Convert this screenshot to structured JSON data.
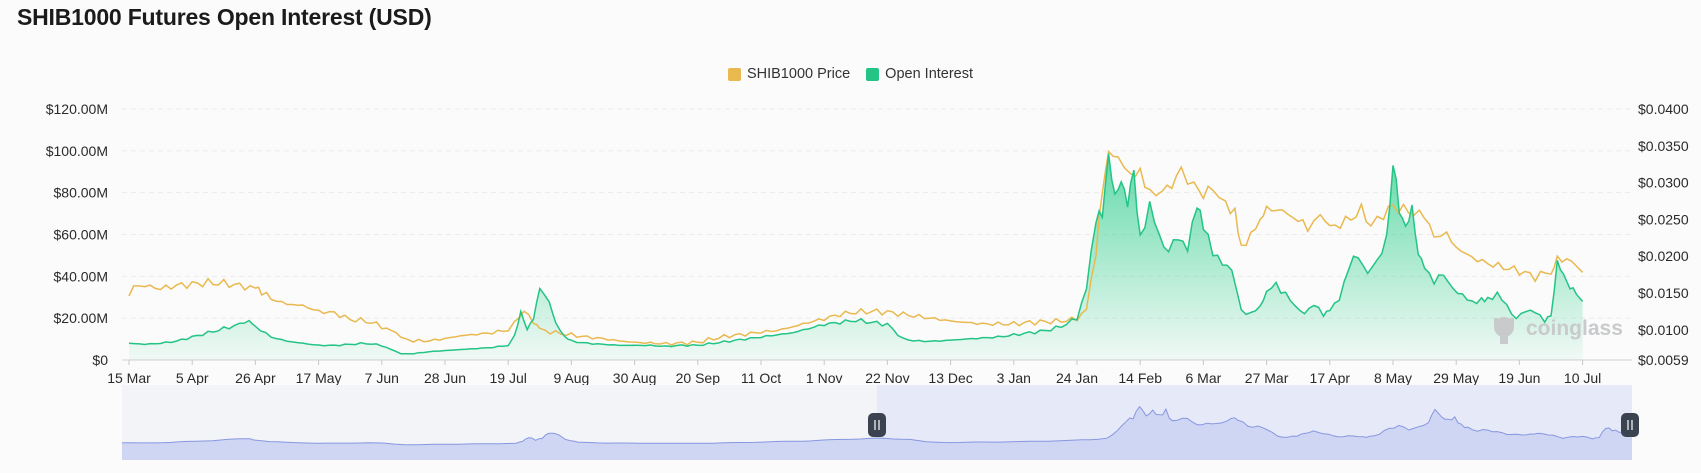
{
  "title": "SHIB1000 Futures Open Interest (USD)",
  "watermark": "coinglass",
  "colors": {
    "price": "#e9b94f",
    "oi": "#23c486",
    "oi_fill_top": "#2fcf8d",
    "nav_fill": "#cfd6f3",
    "nav_line": "#8797e0",
    "nav_select": "#e6e9f8"
  },
  "chart_data": {
    "type": "line",
    "legend": {
      "placement": "top-center"
    },
    "grid": true,
    "x_ticks": [
      "15 Mar",
      "5 Apr",
      "26 Apr",
      "17 May",
      "7 Jun",
      "28 Jun",
      "19 Jul",
      "9 Aug",
      "30 Aug",
      "20 Sep",
      "11 Oct",
      "1 Nov",
      "22 Nov",
      "13 Dec",
      "3 Jan",
      "24 Jan",
      "14 Feb",
      "6 Mar",
      "27 Mar",
      "17 Apr",
      "8 May",
      "29 May",
      "19 Jun",
      "10 Jul"
    ],
    "y_left_ticks": [
      "$0",
      "$20.00M",
      "$40.00M",
      "$60.00M",
      "$80.00M",
      "$100.00M",
      "$120.00M"
    ],
    "y_left_range": [
      0,
      120
    ],
    "y_right_ticks": [
      "$0.0059",
      "$0.0100",
      "$0.0150",
      "$0.0200",
      "$0.0250",
      "$0.0300",
      "$0.0350",
      "$0.0400"
    ],
    "y_right_range": [
      0.0059,
      0.04
    ],
    "series": [
      {
        "name": "SHIB1000 Price",
        "axis": "right",
        "points": [
          [
            0,
            0.0146
          ],
          [
            0.15,
            0.0158
          ],
          [
            0.5,
            0.016
          ],
          [
            1,
            0.0156
          ],
          [
            1.5,
            0.016
          ],
          [
            2,
            0.0162
          ],
          [
            2.5,
            0.0164
          ],
          [
            3,
            0.0163
          ],
          [
            3.5,
            0.016
          ],
          [
            4,
            0.0156
          ],
          [
            4.2,
            0.015
          ],
          [
            4.5,
            0.0142
          ],
          [
            5,
            0.0135
          ],
          [
            5.5,
            0.0133
          ],
          [
            6,
            0.0125
          ],
          [
            6.5,
            0.0123
          ],
          [
            7,
            0.0114
          ],
          [
            7.5,
            0.0112
          ],
          [
            8,
            0.0105
          ],
          [
            8.3,
            0.0099
          ],
          [
            8.6,
            0.009
          ],
          [
            9,
            0.0085
          ],
          [
            9.5,
            0.0085
          ],
          [
            10,
            0.0088
          ],
          [
            10.5,
            0.0092
          ],
          [
            11,
            0.0094
          ],
          [
            11.5,
            0.0096
          ],
          [
            12,
            0.01
          ],
          [
            12.2,
            0.0112
          ],
          [
            12.5,
            0.0125
          ],
          [
            12.8,
            0.011
          ],
          [
            13,
            0.01
          ],
          [
            13.5,
            0.0096
          ],
          [
            14,
            0.0093
          ],
          [
            14.5,
            0.009
          ],
          [
            15,
            0.0088
          ],
          [
            15.5,
            0.0085
          ],
          [
            16,
            0.0083
          ],
          [
            16.5,
            0.0082
          ],
          [
            17,
            0.0081
          ],
          [
            17.5,
            0.0082
          ],
          [
            18,
            0.0083
          ],
          [
            18.5,
            0.0088
          ],
          [
            19,
            0.0092
          ],
          [
            19.5,
            0.0094
          ],
          [
            20,
            0.0097
          ],
          [
            20.5,
            0.0099
          ],
          [
            21,
            0.0104
          ],
          [
            21.5,
            0.011
          ],
          [
            22,
            0.0115
          ],
          [
            22.5,
            0.0121
          ],
          [
            23,
            0.0124
          ],
          [
            23.5,
            0.0125
          ],
          [
            24,
            0.0124
          ],
          [
            24.5,
            0.0121
          ],
          [
            25,
            0.0118
          ],
          [
            25.5,
            0.0115
          ],
          [
            26,
            0.0112
          ],
          [
            26.5,
            0.011
          ],
          [
            27,
            0.0108
          ],
          [
            27.5,
            0.0108
          ],
          [
            28,
            0.0108
          ],
          [
            28.5,
            0.011
          ],
          [
            29,
            0.0111
          ],
          [
            29.5,
            0.0112
          ],
          [
            30,
            0.0115
          ],
          [
            30.3,
            0.013
          ],
          [
            30.6,
            0.02
          ],
          [
            30.8,
            0.029
          ],
          [
            31,
            0.0345
          ],
          [
            31.3,
            0.0335
          ],
          [
            31.7,
            0.0305
          ],
          [
            32,
            0.032
          ],
          [
            32.3,
            0.0282
          ],
          [
            32.7,
            0.029
          ],
          [
            33,
            0.03
          ],
          [
            33.3,
            0.0315
          ],
          [
            33.7,
            0.03
          ],
          [
            34,
            0.0285
          ],
          [
            34.3,
            0.029
          ],
          [
            34.7,
            0.0272
          ],
          [
            35,
            0.0262
          ],
          [
            35.2,
            0.0215
          ],
          [
            35.5,
            0.0228
          ],
          [
            35.8,
            0.0245
          ],
          [
            36,
            0.0264
          ],
          [
            36.5,
            0.0262
          ],
          [
            37,
            0.0248
          ],
          [
            37.3,
            0.0238
          ],
          [
            37.7,
            0.0258
          ],
          [
            38,
            0.0238
          ],
          [
            38.5,
            0.0247
          ],
          [
            39,
            0.0262
          ],
          [
            39.3,
            0.0242
          ],
          [
            39.7,
            0.0254
          ],
          [
            40,
            0.0268
          ],
          [
            40.5,
            0.0261
          ],
          [
            41,
            0.0255
          ],
          [
            41.3,
            0.0232
          ],
          [
            41.7,
            0.0226
          ],
          [
            42,
            0.0212
          ],
          [
            42.5,
            0.0198
          ],
          [
            43,
            0.019
          ],
          [
            43.5,
            0.0185
          ],
          [
            44,
            0.018
          ],
          [
            44.5,
            0.0172
          ],
          [
            45,
            0.018
          ],
          [
            45.2,
            0.0196
          ],
          [
            45.5,
            0.0198
          ],
          [
            45.8,
            0.0185
          ],
          [
            46,
            0.0178
          ]
        ]
      },
      {
        "name": "Open Interest",
        "axis": "left",
        "points": [
          [
            0,
            8
          ],
          [
            0.5,
            7.5
          ],
          [
            1,
            8
          ],
          [
            1.5,
            9
          ],
          [
            2,
            11
          ],
          [
            2.5,
            13
          ],
          [
            3,
            15
          ],
          [
            3.5,
            17
          ],
          [
            3.8,
            19
          ],
          [
            4,
            16
          ],
          [
            4.5,
            11
          ],
          [
            5,
            9
          ],
          [
            5.5,
            8
          ],
          [
            6,
            7
          ],
          [
            6.5,
            7
          ],
          [
            7,
            7.5
          ],
          [
            7.5,
            8
          ],
          [
            8,
            7
          ],
          [
            8.3,
            5
          ],
          [
            8.6,
            3
          ],
          [
            9,
            3
          ],
          [
            9.5,
            4
          ],
          [
            10,
            4.5
          ],
          [
            10.5,
            5
          ],
          [
            11,
            5.5
          ],
          [
            11.5,
            6
          ],
          [
            12,
            7
          ],
          [
            12.2,
            12
          ],
          [
            12.4,
            22
          ],
          [
            12.6,
            15
          ],
          [
            12.8,
            20
          ],
          [
            13,
            33
          ],
          [
            13.3,
            28
          ],
          [
            13.5,
            17
          ],
          [
            13.8,
            11
          ],
          [
            14,
            9
          ],
          [
            14.5,
            8
          ],
          [
            15,
            7.5
          ],
          [
            15.5,
            7
          ],
          [
            16,
            7
          ],
          [
            16.5,
            7
          ],
          [
            17,
            6.5
          ],
          [
            17.5,
            7
          ],
          [
            18,
            7
          ],
          [
            18.5,
            8
          ],
          [
            19,
            9
          ],
          [
            19.5,
            10
          ],
          [
            20,
            11
          ],
          [
            20.5,
            12
          ],
          [
            21,
            13
          ],
          [
            21.5,
            15
          ],
          [
            22,
            17
          ],
          [
            22.5,
            18
          ],
          [
            23,
            19
          ],
          [
            23.5,
            18
          ],
          [
            24,
            17
          ],
          [
            24.5,
            10
          ],
          [
            25,
            9
          ],
          [
            25.5,
            9
          ],
          [
            26,
            9.5
          ],
          [
            26.5,
            10
          ],
          [
            27,
            10.5
          ],
          [
            27.5,
            11
          ],
          [
            28,
            12
          ],
          [
            28.5,
            13
          ],
          [
            29,
            14
          ],
          [
            29.5,
            16
          ],
          [
            30,
            20
          ],
          [
            30.3,
            35
          ],
          [
            30.6,
            65
          ],
          [
            30.8,
            70
          ],
          [
            31,
            100
          ],
          [
            31.2,
            75
          ],
          [
            31.4,
            88
          ],
          [
            31.6,
            75
          ],
          [
            31.8,
            88
          ],
          [
            32,
            60
          ],
          [
            32.3,
            72
          ],
          [
            32.6,
            60
          ],
          [
            32.9,
            52
          ],
          [
            33.2,
            58
          ],
          [
            33.5,
            55
          ],
          [
            33.8,
            72
          ],
          [
            34,
            65
          ],
          [
            34.3,
            50
          ],
          [
            34.6,
            48
          ],
          [
            34.9,
            42
          ],
          [
            35.2,
            24
          ],
          [
            35.5,
            22
          ],
          [
            35.8,
            25
          ],
          [
            36,
            32
          ],
          [
            36.3,
            36
          ],
          [
            36.6,
            32
          ],
          [
            36.9,
            25
          ],
          [
            37.2,
            23
          ],
          [
            37.5,
            26
          ],
          [
            37.8,
            22
          ],
          [
            38,
            23
          ],
          [
            38.3,
            30
          ],
          [
            38.6,
            44
          ],
          [
            38.9,
            50
          ],
          [
            39.2,
            42
          ],
          [
            39.5,
            46
          ],
          [
            39.8,
            60
          ],
          [
            40,
            92
          ],
          [
            40.2,
            72
          ],
          [
            40.4,
            65
          ],
          [
            40.6,
            70
          ],
          [
            40.8,
            52
          ],
          [
            41,
            45
          ],
          [
            41.3,
            38
          ],
          [
            41.6,
            40
          ],
          [
            41.9,
            35
          ],
          [
            42.2,
            30
          ],
          [
            42.5,
            28
          ],
          [
            42.8,
            29
          ],
          [
            43,
            30
          ],
          [
            43.3,
            31
          ],
          [
            43.6,
            26
          ],
          [
            43.9,
            20
          ],
          [
            44.2,
            23
          ],
          [
            44.5,
            24
          ],
          [
            44.8,
            18
          ],
          [
            45,
            22
          ],
          [
            45.2,
            46
          ],
          [
            45.4,
            40
          ],
          [
            45.6,
            36
          ],
          [
            45.8,
            31
          ],
          [
            46,
            28
          ]
        ]
      }
    ]
  }
}
